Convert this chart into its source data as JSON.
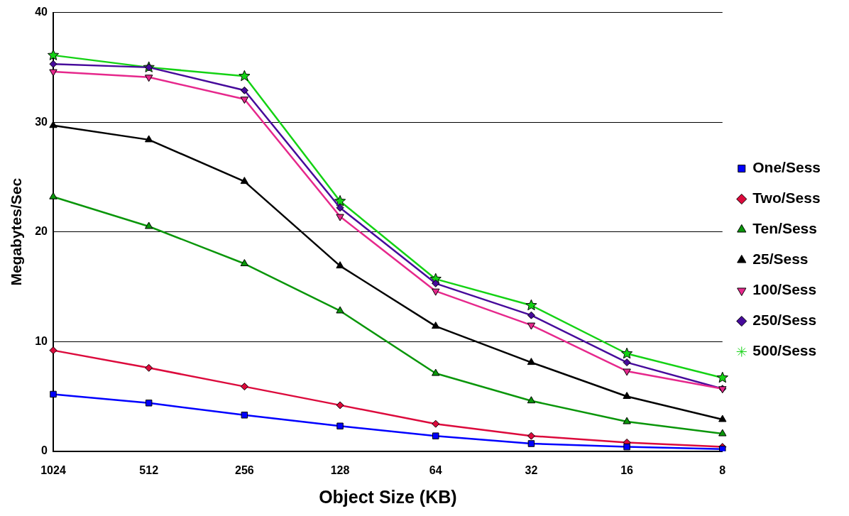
{
  "chart_data": {
    "type": "line",
    "xlabel": "Object Size (KB)",
    "ylabel": "Megabytes/Sec",
    "categories": [
      "1024",
      "512",
      "256",
      "128",
      "64",
      "32",
      "16",
      "8"
    ],
    "series": [
      {
        "name": "One/Sess",
        "color": "#0000ff",
        "marker": "square",
        "values": [
          5.2,
          4.4,
          3.3,
          2.3,
          1.4,
          0.7,
          0.4,
          0.2
        ]
      },
      {
        "name": "Two/Sess",
        "color": "#dc0a3c",
        "marker": "diamond",
        "values": [
          9.2,
          7.6,
          5.9,
          4.2,
          2.5,
          1.4,
          0.8,
          0.4
        ]
      },
      {
        "name": "Ten/Sess",
        "color": "#0a960a",
        "marker": "triangle",
        "values": [
          23.2,
          20.5,
          17.1,
          12.8,
          7.1,
          4.6,
          2.7,
          1.6
        ]
      },
      {
        "name": "25/Sess",
        "color": "#000000",
        "marker": "triangle",
        "values": [
          29.7,
          28.4,
          24.6,
          16.9,
          11.4,
          8.1,
          5.0,
          2.9
        ]
      },
      {
        "name": "100/Sess",
        "color": "#e6288c",
        "marker": "triangle-down",
        "values": [
          34.6,
          34.1,
          32.1,
          21.4,
          14.6,
          11.5,
          7.3,
          5.7
        ]
      },
      {
        "name": "250/Sess",
        "color": "#460a9b",
        "marker": "diamond",
        "values": [
          35.3,
          35.0,
          32.9,
          22.2,
          15.3,
          12.4,
          8.1,
          5.7
        ]
      },
      {
        "name": "500/Sess",
        "color": "#14d214",
        "marker": "star",
        "values": [
          36.1,
          35.0,
          34.2,
          22.8,
          15.7,
          13.3,
          8.9,
          6.7
        ]
      }
    ],
    "ylim": [
      0,
      40
    ],
    "yticks": [
      0,
      10,
      20,
      30,
      40
    ],
    "grid": "y",
    "legend": "right",
    "line_style": "solid"
  }
}
